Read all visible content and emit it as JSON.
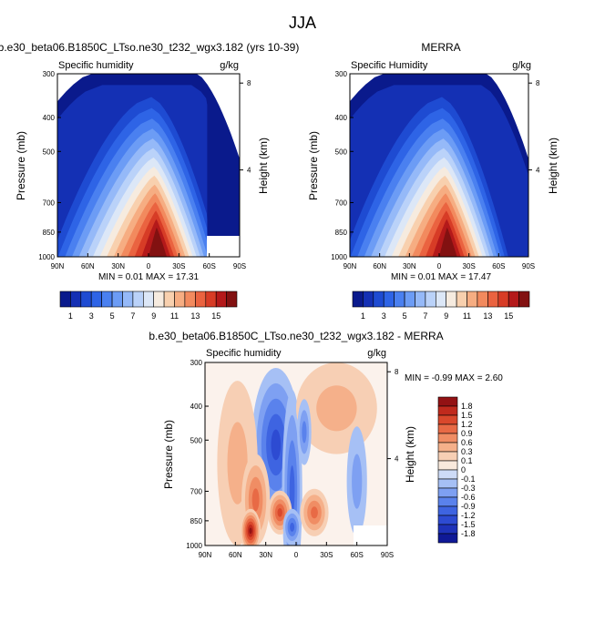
{
  "figure": {
    "title": "JJA"
  },
  "colors": {
    "sequential": [
      "#0a1a8c",
      "#1430b4",
      "#1e4bd2",
      "#2e64e6",
      "#4a80f0",
      "#6c9cf5",
      "#95b9f8",
      "#bad2f9",
      "#dce7f7",
      "#f6ebdf",
      "#f8d0ae",
      "#f6ad82",
      "#f28a5e",
      "#ea6340",
      "#d73c26",
      "#b4191a",
      "#821111"
    ],
    "diverging": [
      "#0f1996",
      "#1e32b9",
      "#2d4bd2",
      "#3e64e1",
      "#5a82ec",
      "#7ea0f2",
      "#a6c0f5",
      "#cddbf7",
      "#f9e9dc",
      "#f7cfb4",
      "#f5b08a",
      "#f08d64",
      "#e86a45",
      "#d9482c",
      "#c02a1d",
      "#931214"
    ]
  },
  "chart_data": [
    {
      "type": "heatmap",
      "title": "b.e30_beta06.B1850C_LTso.ne30_t232_wgx3.182 (yrs 10-39)",
      "left_label": "Specific humidity",
      "units": "g/kg",
      "ylabel": "Pressure (mb)",
      "ylabel_right": "Height (km)",
      "x_ticks": [
        "90N",
        "60N",
        "30N",
        "0",
        "30S",
        "60S",
        "90S"
      ],
      "y_ticks": [
        300,
        400,
        500,
        700,
        850,
        1000
      ],
      "y_right_ticks": [
        8,
        4
      ],
      "min": 0.01,
      "max": 17.31,
      "stats_text": "MIN =  0.01  MAX =  17.31",
      "colorbar_labels": [
        "1",
        "3",
        "5",
        "7",
        "9",
        "11",
        "13",
        "15"
      ]
    },
    {
      "type": "heatmap",
      "title": "MERRA",
      "left_label": "Specific Humidity",
      "units": "g/kg",
      "ylabel": "Pressure (mb)",
      "ylabel_right": "Height (km)",
      "x_ticks": [
        "90N",
        "60N",
        "30N",
        "0",
        "30S",
        "60S",
        "90S"
      ],
      "y_ticks": [
        300,
        400,
        500,
        700,
        850,
        1000
      ],
      "y_right_ticks": [
        8,
        4
      ],
      "min": 0.01,
      "max": 17.47,
      "stats_text": "MIN =  0.01  MAX =  17.47",
      "colorbar_labels": [
        "1",
        "3",
        "5",
        "7",
        "9",
        "11",
        "13",
        "15"
      ]
    },
    {
      "type": "heatmap",
      "title": "b.e30_beta06.B1850C_LTso.ne30_t232_wgx3.182 - MERRA",
      "left_label": "Specific humidity",
      "units": "g/kg",
      "ylabel": "Pressure (mb)",
      "ylabel_right": "Height (km)",
      "x_ticks": [
        "90N",
        "60N",
        "30N",
        "0",
        "30S",
        "60S",
        "90S"
      ],
      "y_ticks": [
        300,
        400,
        500,
        700,
        850,
        1000
      ],
      "y_right_ticks": [
        8,
        4
      ],
      "min": -0.99,
      "max": 2.6,
      "stats_text": "MIN = -0.99  MAX =  2.60",
      "colorbar_labels": [
        "1.8",
        "1.5",
        "1.2",
        "0.9",
        "0.6",
        "0.3",
        "0.1",
        "0",
        "-0.1",
        "-0.3",
        "-0.6",
        "-0.9",
        "-1.2",
        "-1.5",
        "-1.8"
      ]
    }
  ]
}
